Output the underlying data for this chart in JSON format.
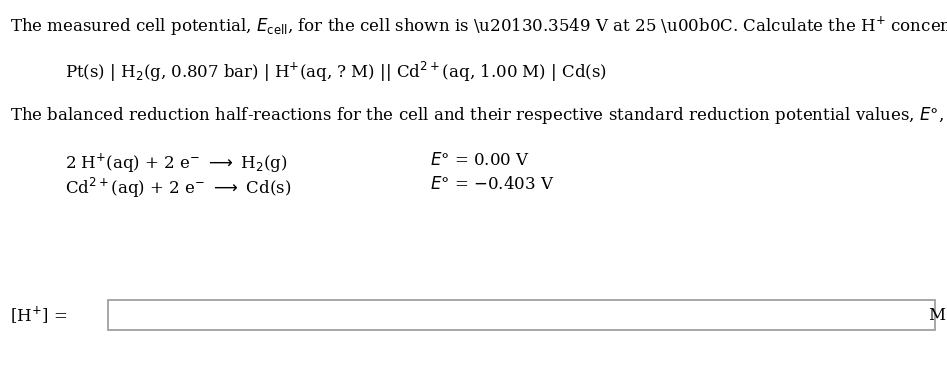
{
  "bg_color": "#ffffff",
  "line1_parts": [
    "The measured cell potential, ",
    "$\\mathit{E}_{\\mathrm{cell}}$",
    ", for the cell shown is –0.3549 V at 25 °C. Calculate the H",
    "$^{+}$",
    " concentration."
  ],
  "line2": "Pt(s) | H$_{2}$(g, 0.807 bar) | H$^{+}$(aq, ? M) || Cd$^{2+}$(aq, 1.00 M) | Cd(s)",
  "line3_parts": [
    "The balanced reduction half-reactions for the cell and their respective standard reduction potential values, ",
    "$\\mathit{E}$°",
    ", are given."
  ],
  "rxn1_left": "2 H$^{+}$(aq) + 2 e$^{-}$ → H$_{2}$(g)",
  "rxn1_right": "$\\mathit{E}$° = 0.00 V",
  "rxn2_left": "Cd$^{2+}$(aq) + 2 e$^{-}$ → Cd(s)",
  "rxn2_right": "$\\mathit{E}$° = −0.403 V",
  "answer_label": "[H$^{+}$] =",
  "answer_unit": "M",
  "fontsize_main": 12.0,
  "box_edge_color": "#a0a0a0"
}
